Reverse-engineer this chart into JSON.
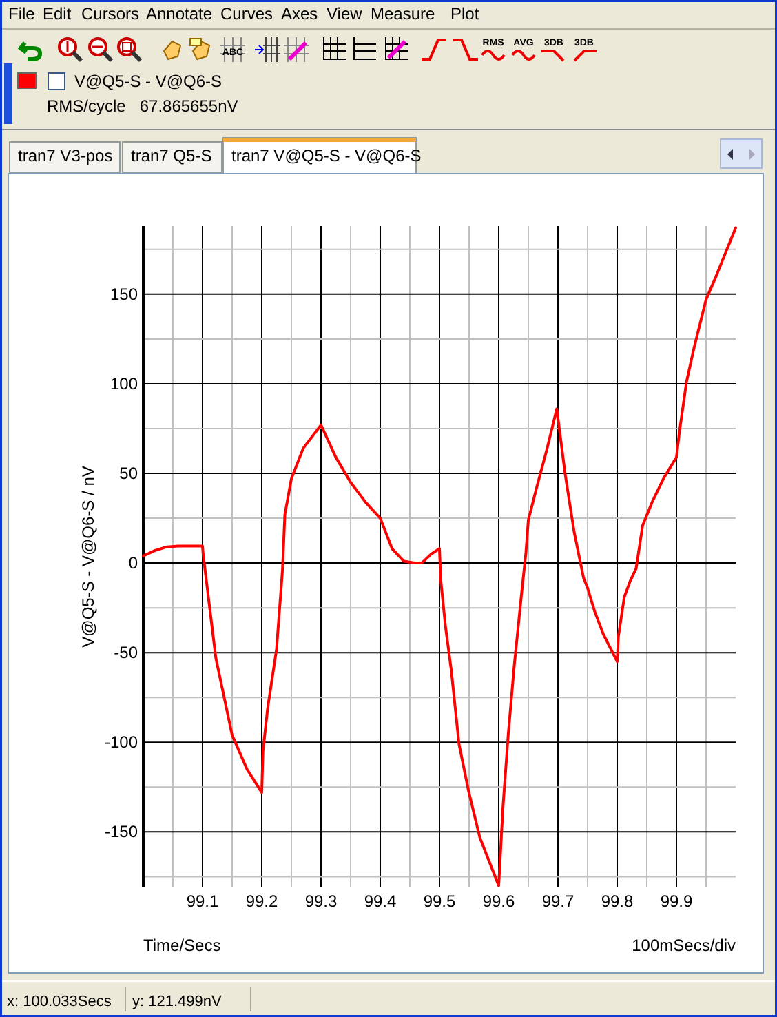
{
  "chart_data": {
    "type": "line",
    "xlabel": "Time/Secs",
    "ylabel": "V@Q5-S - V@Q6-S / nV",
    "xlim": [
      99,
      100
    ],
    "ylim": [
      -181,
      188
    ],
    "xticks": [
      {
        "value": 99.05,
        "label": null
      },
      99.1,
      {
        "value": 99.15,
        "label": null
      },
      99.2,
      {
        "value": 99.25,
        "label": null
      },
      99.3,
      {
        "value": 99.35,
        "label": null
      },
      99.4,
      {
        "value": 99.45,
        "label": null
      },
      99.5,
      {
        "value": 99.55,
        "label": null
      },
      99.6,
      {
        "value": 99.65,
        "label": null
      },
      99.7,
      {
        "value": 99.75,
        "label": null
      },
      99.8,
      {
        "value": 99.85,
        "label": null
      },
      99.9,
      {
        "value": 99.95,
        "label": null
      }
    ],
    "yticks": [
      {
        "value": -175,
        "label": null
      },
      -150,
      {
        "value": -125,
        "label": null
      },
      -100,
      {
        "value": -75,
        "label": null
      },
      -50,
      {
        "value": -25,
        "label": null
      },
      0,
      {
        "value": 25,
        "label": null
      },
      50,
      {
        "value": 75,
        "label": null
      },
      100,
      {
        "value": 125,
        "label": null
      },
      150,
      {
        "value": 175,
        "label": null
      }
    ],
    "grid": true,
    "legend": "top left",
    "line_style": "solid",
    "marker": "none",
    "annotations": [
      "File",
      "Edit",
      "Cursors",
      "Annotate",
      "Curves",
      "Axes",
      "View",
      "Measure",
      "Plot",
      "RMS/cycle   67.865655nV",
      "tran7 V3-pos",
      "tran7 Q5-S",
      "tran7 V@Q5-S - V@Q6-S",
      "100mSecs/div",
      "x: 100.033Secs",
      "y: 121.499nV",
      "RMS",
      "AVG",
      "3DB",
      "3DB",
      "ABC"
    ],
    "series": [
      {
        "name": "V@Q5-S - V@Q6-S",
        "color": "#ff0000",
        "x": [
          99.0,
          99.02,
          99.04,
          99.06,
          99.1,
          99.101,
          99.1225,
          99.15,
          99.175,
          99.2,
          99.202,
          99.21,
          99.225,
          99.235,
          99.239,
          99.25,
          99.27,
          99.3,
          99.325,
          99.35,
          99.375,
          99.4,
          99.42,
          99.44,
          99.46,
          99.47,
          99.486,
          99.5,
          99.502,
          99.51,
          99.52,
          99.533,
          99.549,
          99.568,
          99.6,
          99.607,
          99.616,
          99.626,
          99.638,
          99.646,
          99.65,
          99.664,
          99.681,
          99.698,
          99.712,
          99.727,
          99.743,
          99.75,
          99.762,
          99.777,
          99.8,
          99.802,
          99.812,
          99.822,
          99.832,
          99.843,
          99.859,
          99.878,
          99.9,
          99.905,
          99.917,
          99.929,
          99.95,
          99.967,
          100.0
        ],
        "values": [
          4,
          7,
          9,
          9.5,
          9.5,
          5,
          -53,
          -96,
          -115,
          -128,
          -105,
          -81,
          -48,
          -4,
          27,
          47,
          64,
          77,
          59,
          45,
          34,
          25,
          8,
          1,
          0,
          0,
          5,
          8,
          -9,
          -35,
          -60,
          -101,
          -127,
          -153,
          -180,
          -137,
          -96,
          -58,
          -19,
          6,
          24,
          42,
          63,
          86,
          50,
          18,
          -8,
          -14,
          -27,
          -40,
          -55,
          -41,
          -19,
          -10,
          -3,
          21,
          34,
          47,
          59,
          73,
          101,
          119,
          147,
          160,
          187
        ]
      }
    ]
  }
}
